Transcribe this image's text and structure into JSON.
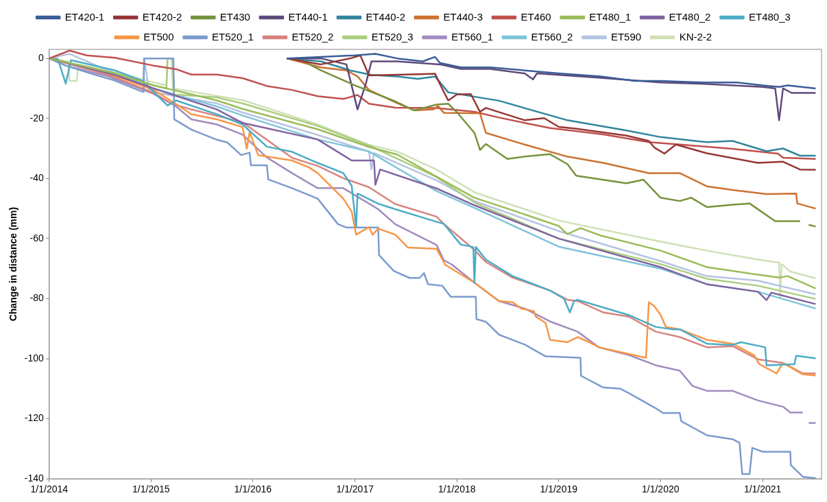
{
  "chart_data": {
    "type": "line",
    "ylabel": "Change in distance (mm)",
    "xlim": [
      "2014-01-01",
      "2021-07-31"
    ],
    "xticks": [
      {
        "value": "2014-01-01",
        "label": "1/1/2014"
      },
      {
        "value": "2015-01-01",
        "label": "1/1/2015"
      },
      {
        "value": "2016-01-01",
        "label": "1/1/2016"
      },
      {
        "value": "2017-01-01",
        "label": "1/1/2017"
      },
      {
        "value": "2018-01-01",
        "label": "1/1/2018"
      },
      {
        "value": "2019-01-01",
        "label": "1/1/2019"
      },
      {
        "value": "2020-01-01",
        "label": "1/1/2020"
      },
      {
        "value": "2021-01-01",
        "label": "1/1/2021"
      }
    ],
    "ylim": [
      -140,
      3
    ],
    "yticks": [
      0,
      -20,
      -40,
      -60,
      -80,
      -100,
      -120,
      -140
    ],
    "grid": false,
    "legend": "top",
    "series": [
      {
        "name": "ET420-1",
        "color": "#3b5d97",
        "x": [
          "2016-05-01",
          "2016-09-01",
          "2017-01-01",
          "2017-03-15",
          "2017-06-01",
          "2017-09-01",
          "2017-10-15",
          "2017-11-01",
          "2018-01-15",
          "2018-05-01",
          "2018-09-01",
          "2019-01-01",
          "2019-06-01",
          "2019-10-01",
          "2020-01-01",
          "2020-06-01",
          "2020-10-01",
          "2021-01-01",
          "2021-03-01",
          "2021-04-01",
          "2021-07-10"
        ],
        "values": [
          0,
          0.5,
          1,
          1.5,
          0,
          -1,
          0.5,
          -1.5,
          -3,
          -3,
          -4,
          -5,
          -6,
          -7.5,
          -7.5,
          -8,
          -8,
          -9,
          -9.5,
          -9,
          -10
        ]
      },
      {
        "name": "ET420-2",
        "color": "#953735",
        "x": [
          "2016-05-01",
          "2016-09-01",
          "2016-12-15",
          "2017-01-20",
          "2017-02-20",
          "2017-08-15",
          "2017-10-15",
          "2017-11-01",
          "2017-12-01",
          "2018-01-01",
          "2018-02-20",
          "2018-03-25",
          "2018-04-15",
          "2018-09-01",
          "2018-11-10",
          "2019-01-01",
          "2019-03-01",
          "2019-09-01",
          "2019-11-20",
          "2019-12-10",
          "2020-01-15",
          "2020-02-25",
          "2020-06-15",
          "2020-12-15",
          "2021-03-15",
          "2021-05-15",
          "2021-07-10"
        ],
        "values": [
          0,
          -2,
          0,
          1,
          -5.7,
          -5.3,
          -5.1,
          -8.5,
          -14,
          -12,
          -11.9,
          -17.8,
          -16.5,
          -20.6,
          -19.9,
          -22.8,
          -23.4,
          -25.7,
          -27.5,
          -29.7,
          -31.7,
          -28.7,
          -31.6,
          -34.8,
          -34.4,
          -37,
          -37.1
        ]
      },
      {
        "name": "ET430",
        "color": "#76923c",
        "x": [
          "2016-05-01",
          "2016-07-01",
          "2016-09-01",
          "2017-01-01",
          "2017-05-25",
          "2017-08-01",
          "2017-10-20",
          "2017-12-01",
          "2018-01-01",
          "2018-03-05",
          "2018-03-25",
          "2018-04-15",
          "2018-07-01",
          "2018-09-01",
          "2018-12-01",
          "2019-02-01",
          "2019-03-05",
          "2019-09-01",
          "2019-11-01",
          "2020-01-01",
          "2020-03-10",
          "2020-04-20",
          "2020-06-15",
          "2020-09-15",
          "2020-11-15",
          "2021-02-15",
          "2021-05-15",
          "2021-05-25",
          "2021-06-15",
          "2021-07-10"
        ],
        "values": [
          0,
          -1,
          -4,
          -9,
          -14.3,
          -17.3,
          -15.4,
          -15.1,
          -17.9,
          -24.8,
          -30.5,
          -28.5,
          -33.5,
          -32.7,
          -31.9,
          -35.2,
          -39.1,
          -41.6,
          -40.4,
          -46.4,
          -47.5,
          -46.4,
          -49.5,
          -48.7,
          -48.3,
          -54.2,
          -54.2,
          null,
          -55.4,
          -56
        ]
      },
      {
        "name": "ET440-1",
        "color": "#5f497a",
        "x": [
          "2016-05-01",
          "2016-09-01",
          "2016-12-01",
          "2017-01-10",
          "2017-02-10",
          "2017-03-01",
          "2017-06-01",
          "2017-11-01",
          "2018-01-15",
          "2018-05-01",
          "2018-09-01",
          "2018-10-01",
          "2018-10-15",
          "2019-06-01",
          "2020-01-01",
          "2020-06-01",
          "2021-01-01",
          "2021-02-15",
          "2021-03-01",
          "2021-03-15",
          "2021-04-15",
          "2021-07-10"
        ],
        "values": [
          0,
          0,
          -2,
          -17,
          -8,
          -1,
          -1,
          -2,
          -3.5,
          -3.5,
          -5,
          -7,
          -5,
          -6.5,
          -8,
          -8.5,
          -9.5,
          -10,
          -20.6,
          -10,
          -11.5,
          -11.5
        ]
      },
      {
        "name": "ET440-2",
        "color": "#31859c",
        "x": [
          "2016-05-01",
          "2016-09-01",
          "2016-12-15",
          "2017-03-01",
          "2017-06-01",
          "2017-08-15",
          "2017-10-15",
          "2017-12-01",
          "2018-06-01",
          "2019-02-01",
          "2019-09-01",
          "2020-01-01",
          "2020-06-15",
          "2020-09-15",
          "2021-01-15",
          "2021-03-15",
          "2021-05-15",
          "2021-07-10"
        ],
        "values": [
          0,
          -1,
          -4,
          -5.5,
          -6,
          -6.8,
          -6,
          -11.3,
          -14.1,
          -20.6,
          -24,
          -26.2,
          -27.9,
          -27.5,
          -30.9,
          -30,
          -32.4,
          -32.4
        ]
      },
      {
        "name": "ET440-3",
        "color": "#cd7130",
        "x": [
          "2016-05-01",
          "2016-09-01",
          "2016-12-01",
          "2017-01-10",
          "2017-02-20",
          "2017-05-25",
          "2017-08-01",
          "2017-10-10",
          "2017-10-25",
          "2017-11-15",
          "2018-03-25",
          "2018-04-15",
          "2018-09-01",
          "2019-02-01",
          "2019-06-10",
          "2019-11-20",
          "2020-03-10",
          "2020-06-15",
          "2020-09-15",
          "2021-01-15",
          "2021-05-01",
          "2021-05-05",
          "2021-07-10"
        ],
        "values": [
          0,
          -3,
          -4,
          -6,
          -10.5,
          -14.6,
          -17.3,
          -17,
          -15.8,
          -18.1,
          -18.3,
          -24.8,
          -28.7,
          -32.7,
          -34.8,
          -38.2,
          -38.2,
          -42.6,
          -43.8,
          -45.2,
          -45,
          -48.3,
          -50
        ]
      },
      {
        "name": "ET460",
        "color": "#c0504d",
        "x": [
          "2014-01-01",
          "2014-03-15",
          "2014-05-15",
          "2014-08-25",
          "2015-01-10",
          "2015-04-01",
          "2015-05-25",
          "2015-08-25",
          "2015-11-25",
          "2016-02-20",
          "2016-05-20",
          "2016-08-20",
          "2016-11-20",
          "2017-01-10",
          "2017-02-20",
          "2017-05-25",
          "2017-10-20",
          "2018-03-05",
          "2018-06-01",
          "2018-09-01",
          "2018-12-01",
          "2019-06-10",
          "2019-11-20",
          "2020-03-10",
          "2020-09-15",
          "2021-02-25",
          "2021-03-15",
          "2021-07-10"
        ],
        "values": [
          0,
          2.6,
          1,
          0.2,
          -2.4,
          -3.6,
          -5.4,
          -5.4,
          -6.6,
          -9.2,
          -10.5,
          -12.6,
          -13.5,
          -12.2,
          -15.1,
          -16.4,
          -16.5,
          -17.8,
          -19.7,
          -21.5,
          -23.2,
          -25.3,
          -27.9,
          -28.7,
          -30.1,
          -31.7,
          -33.1,
          -33.5
        ]
      },
      {
        "name": "ET480_1",
        "color": "#9bbb59",
        "x": [
          "2014-01-01",
          "2014-08-25",
          "2015-01-10",
          "2015-03-20",
          "2015-08-25",
          "2015-11-25",
          "2016-08-20",
          "2017-02-20",
          "2017-06-01",
          "2017-10-20",
          "2018-03-05",
          "2018-07-01",
          "2019-01-01",
          "2019-02-01",
          "2019-03-20",
          "2019-06-01",
          "2020-01-01",
          "2020-06-15",
          "2020-12-15",
          "2021-03-01",
          "2021-04-01",
          "2021-07-10"
        ],
        "values": [
          0,
          -5,
          -9,
          -10.5,
          -14,
          -16.8,
          -23.6,
          -29.5,
          -32,
          -39.4,
          -46.4,
          -50,
          -55.8,
          -58.5,
          -56.5,
          -59,
          -64,
          -69.5,
          -72,
          -73,
          -72.5,
          -76.6
        ]
      },
      {
        "name": "ET480_2",
        "color": "#8064a2",
        "x": [
          "2014-01-01",
          "2014-08-25",
          "2015-01-10",
          "2015-08-25",
          "2015-11-25",
          "2016-08-20",
          "2016-12-20",
          "2017-03-10",
          "2017-03-15",
          "2017-04-01",
          "2017-10-20",
          "2018-03-05",
          "2019-01-01",
          "2020-01-01",
          "2020-06-15",
          "2020-12-15",
          "2021-01-15",
          "2021-02-01",
          "2021-07-10"
        ],
        "values": [
          0,
          -5.5,
          -10,
          -17,
          -21.5,
          -27,
          -34,
          -34,
          -42.1,
          -37,
          -43.3,
          -48.9,
          -60,
          -69.5,
          -75.2,
          -77.7,
          -80.5,
          -78,
          -81.8
        ]
      },
      {
        "name": "ET480_3",
        "color": "#4bacc6",
        "x": [
          "2014-01-01",
          "2014-02-01",
          "2014-03-01",
          "2014-03-20",
          "2014-08-25",
          "2014-12-01",
          "2015-03-01",
          "2015-04-01",
          "2015-08-25",
          "2015-11-25",
          "2016-02-20",
          "2016-05-20",
          "2016-08-20",
          "2016-11-20",
          "2016-12-20",
          "2017-01-05",
          "2017-01-10",
          "2017-03-28",
          "2017-05-25",
          "2017-10-20",
          "2017-11-15",
          "2018-01-15",
          "2018-03-01",
          "2018-03-05",
          "2018-03-10",
          "2018-04-15",
          "2018-07-20",
          "2018-12-01",
          "2019-01-20",
          "2019-02-10",
          "2019-02-25",
          "2019-03-10",
          "2019-09-10",
          "2019-12-15",
          "2020-02-10",
          "2020-03-10",
          "2020-06-15",
          "2020-09-15",
          "2020-10-15",
          "2021-01-10",
          "2021-01-15",
          "2021-04-25",
          "2021-05-01",
          "2021-07-10"
        ],
        "values": [
          0,
          -0.2,
          -8.4,
          -0.6,
          -4,
          -7.5,
          -15.7,
          -14,
          -18.6,
          -22,
          -29.4,
          -31.1,
          -34.8,
          -38.2,
          -42.4,
          -56.2,
          -45,
          -48.5,
          -50.2,
          -54.4,
          -55.1,
          -62,
          -62.8,
          -74.7,
          -62.8,
          -67,
          -72.5,
          -77.3,
          -80,
          -84.6,
          -80.8,
          -80.4,
          -85.5,
          -89.4,
          -90.2,
          -90.2,
          -95,
          -95.4,
          -94.5,
          -96.2,
          -102.2,
          -101.8,
          -99,
          -99.9
        ]
      },
      {
        "name": "ET500",
        "color": "#f79646",
        "x": [
          "2014-01-01",
          "2014-08-01",
          "2015-01-10",
          "2015-04-01",
          "2015-05-25",
          "2015-08-25",
          "2015-11-25",
          "2015-12-10",
          "2015-12-20",
          "2016-01-20",
          "2016-05-20",
          "2016-07-20",
          "2016-08-20",
          "2016-11-20",
          "2016-12-20",
          "2017-01-05",
          "2017-02-20",
          "2017-03-05",
          "2017-03-25",
          "2017-05-25",
          "2017-07-10",
          "2017-10-20",
          "2017-11-20",
          "2018-03-05",
          "2018-06-01",
          "2018-07-20",
          "2018-08-20",
          "2018-10-05",
          "2018-10-10",
          "2018-11-15",
          "2018-12-01",
          "2019-02-01",
          "2019-03-10",
          "2019-04-20",
          "2019-05-25",
          "2019-11-10",
          "2019-11-20",
          "2019-12-10",
          "2020-01-01",
          "2020-01-20",
          "2020-03-10",
          "2020-06-15",
          "2020-09-15",
          "2020-12-01",
          "2020-12-20",
          "2021-02-20",
          "2021-03-15",
          "2021-05-25",
          "2021-07-10"
        ],
        "values": [
          0,
          -5,
          -10.5,
          -15.2,
          -18.6,
          -20.3,
          -22.9,
          -30.1,
          -24.6,
          -32.2,
          -34,
          -36.3,
          -38.2,
          -46.7,
          -51,
          -58.7,
          -56.2,
          -58.7,
          -56.7,
          -58.7,
          -63,
          -63.4,
          -68.7,
          -74.7,
          -80.8,
          -81.2,
          -83.3,
          -84.2,
          -85.9,
          -88.1,
          -93.7,
          -94.5,
          -92.8,
          -94.5,
          -96.2,
          -99.7,
          -81.2,
          -82.5,
          -85.4,
          -89.4,
          -90.2,
          -93.7,
          -95,
          -98.8,
          -101.8,
          -104.9,
          -101.4,
          -105.2,
          -105.6
        ]
      },
      {
        "name": "ET520_1",
        "color": "#7b9bcd",
        "x": [
          "2014-01-01",
          "2014-03-01",
          "2014-05-25",
          "2014-08-25",
          "2014-11-25",
          "2014-12-05",
          "2014-12-07",
          "2015-03-22",
          "2015-03-25",
          "2015-05-25",
          "2015-08-25",
          "2015-10-01",
          "2015-11-20",
          "2015-12-20",
          "2015-12-25",
          "2016-02-20",
          "2016-02-25",
          "2016-05-20",
          "2016-08-20",
          "2016-11-01",
          "2016-12-01",
          "2017-03-25",
          "2017-03-28",
          "2017-05-20",
          "2017-07-15",
          "2017-08-20",
          "2017-09-05",
          "2017-09-20",
          "2017-11-10",
          "2017-12-10",
          "2018-03-10",
          "2018-03-12",
          "2018-04-15",
          "2018-06-01",
          "2018-09-01",
          "2018-11-15",
          "2019-03-20",
          "2019-03-22",
          "2019-06-10",
          "2019-08-10",
          "2019-09-10",
          "2019-12-15",
          "2020-01-10",
          "2020-03-10",
          "2020-03-15",
          "2020-06-15",
          "2020-09-15",
          "2020-10-10",
          "2020-10-20",
          "2020-11-15",
          "2020-11-25",
          "2021-01-01",
          "2021-04-10",
          "2021-04-12",
          "2021-05-25",
          "2021-07-10"
        ],
        "values": [
          0,
          -2.4,
          -4.9,
          -7.4,
          -10.9,
          -11.2,
          0,
          0,
          -20.3,
          -23.7,
          -27.1,
          -28,
          -32.2,
          -31.4,
          -35.6,
          -35.6,
          -40.3,
          -43.2,
          -46.7,
          -55.2,
          -56.3,
          -56.3,
          -65.5,
          -70.8,
          -73.1,
          -73.1,
          -71.5,
          -75.2,
          -75.7,
          -79.4,
          -79.4,
          -86.8,
          -87.7,
          -92,
          -95.3,
          -99.2,
          -99.7,
          -105.7,
          -109.6,
          -110,
          -111.5,
          -116.5,
          -118.1,
          -118.1,
          -120.8,
          -125.5,
          -126.8,
          -128,
          -138.4,
          -138.4,
          -129.7,
          -131,
          -131,
          -135.4,
          -139.3,
          -139.8
        ]
      },
      {
        "name": "ET520_2",
        "color": "#d6837f",
        "x": [
          "2014-01-01",
          "2014-08-01",
          "2015-01-10",
          "2015-03-15",
          "2015-05-25",
          "2015-11-25",
          "2016-05-20",
          "2016-08-20",
          "2016-11-20",
          "2017-02-20",
          "2017-05-25",
          "2017-10-20",
          "2017-11-15",
          "2018-03-05",
          "2018-04-15",
          "2018-07-20",
          "2018-12-01",
          "2019-02-01",
          "2019-03-10",
          "2019-06-10",
          "2019-09-10",
          "2019-12-15",
          "2020-03-10",
          "2020-06-15",
          "2020-09-15",
          "2020-12-15",
          "2021-03-15",
          "2021-05-25",
          "2021-07-10"
        ],
        "values": [
          0,
          -5.5,
          -11.5,
          -15,
          -17,
          -21.3,
          -33.1,
          -35.8,
          -39.9,
          -42.9,
          -48.5,
          -52.7,
          -55.1,
          -63.8,
          -67.8,
          -73,
          -77.3,
          -80.4,
          -80.8,
          -84.6,
          -86,
          -91,
          -92.8,
          -96.2,
          -95.8,
          -100.2,
          -101.4,
          -104.9,
          -104.9
        ]
      },
      {
        "name": "ET520_3",
        "color": "#abcd7f",
        "x": [
          "2014-01-01",
          "2014-08-25",
          "2015-01-10",
          "2015-02-25",
          "2015-03-01",
          "2015-03-20",
          "2015-03-25",
          "2015-08-25",
          "2015-11-25",
          "2016-08-20",
          "2017-02-20",
          "2017-10-20",
          "2018-03-05",
          "2019-01-01",
          "2020-01-01",
          "2020-06-15",
          "2020-12-15",
          "2021-07-10"
        ],
        "values": [
          0,
          -5,
          -9,
          -10,
          0,
          0,
          -12,
          -13,
          -15,
          -22.5,
          -29,
          -39.5,
          -48,
          -60,
          -68.5,
          -73.4,
          -75.7,
          -80.1
        ]
      },
      {
        "name": "ET560_1",
        "color": "#a08cc0",
        "x": [
          "2014-01-01",
          "2014-03-01",
          "2014-08-01",
          "2015-01-10",
          "2015-04-01",
          "2015-05-25",
          "2015-08-25",
          "2015-11-25",
          "2016-02-20",
          "2016-05-20",
          "2016-08-20",
          "2016-11-20",
          "2017-03-25",
          "2017-05-25",
          "2017-10-20",
          "2017-11-15",
          "2017-12-15",
          "2018-03-05",
          "2018-06-01",
          "2018-09-01",
          "2018-12-01",
          "2019-03-10",
          "2019-05-25",
          "2019-09-10",
          "2019-12-15",
          "2020-03-10",
          "2020-04-25",
          "2020-06-15",
          "2020-09-15",
          "2020-12-15",
          "2021-03-15",
          "2021-04-10",
          "2021-05-25",
          "2021-06-01",
          "2021-06-15",
          "2021-07-10"
        ],
        "values": [
          0,
          -2.4,
          -6,
          -11.8,
          -16,
          -20.3,
          -22,
          -25.4,
          -33,
          -38.2,
          -43.2,
          -43.2,
          -50.2,
          -55.2,
          -62.1,
          -67.2,
          -68.7,
          -74.7,
          -80.8,
          -83.3,
          -87.6,
          -91,
          -96.2,
          -98.8,
          -102.2,
          -104,
          -109.1,
          -110.7,
          -110.7,
          -113.9,
          -116,
          -117.9,
          -117.9,
          null,
          -121.4,
          -121.4
        ]
      },
      {
        "name": "ET560_2",
        "color": "#7fc4d9",
        "x": [
          "2014-01-01",
          "2014-08-25",
          "2015-01-10",
          "2015-08-25",
          "2015-11-25",
          "2016-08-20",
          "2017-02-20",
          "2017-10-20",
          "2018-03-05",
          "2019-01-01",
          "2020-01-01",
          "2020-06-15",
          "2020-12-15",
          "2021-07-10"
        ],
        "values": [
          0,
          -5,
          -10,
          -16,
          -19,
          -27,
          -31,
          -44.2,
          -49.8,
          -62.7,
          -70,
          -75.2,
          -77.7,
          -83.3
        ]
      },
      {
        "name": "ET590",
        "color": "#b4c4e2",
        "x": [
          "2014-01-01",
          "2014-03-15",
          "2014-08-25",
          "2014-12-05",
          "2014-12-07",
          "2014-12-25",
          "2015-08-25",
          "2015-11-25",
          "2016-08-20",
          "2017-02-20",
          "2017-03-01",
          "2017-03-10",
          "2017-10-20",
          "2018-03-05",
          "2019-01-01",
          "2020-01-01",
          "2020-06-15",
          "2020-12-15",
          "2021-07-10"
        ],
        "values": [
          0,
          1.5,
          -5,
          -9,
          0,
          -11,
          -15,
          -18,
          -25.5,
          -31,
          -37,
          -31.5,
          -40.6,
          -47.5,
          -57.5,
          -67.5,
          -72.5,
          -74,
          -78.6
        ]
      },
      {
        "name": "KN-2-2",
        "color": "#cfe0b6",
        "x": [
          "2014-01-01",
          "2014-03-10",
          "2014-03-15",
          "2014-04-10",
          "2014-04-15",
          "2014-08-25",
          "2015-01-10",
          "2015-02-25",
          "2015-03-01",
          "2015-03-15",
          "2015-03-20",
          "2015-08-25",
          "2015-11-25",
          "2016-02-20",
          "2016-08-20",
          "2017-02-20",
          "2017-06-01",
          "2017-10-20",
          "2018-03-05",
          "2019-01-01",
          "2020-01-01",
          "2020-06-15",
          "2020-12-15",
          "2021-03-01",
          "2021-03-05",
          "2021-03-10",
          "2021-04-10",
          "2021-07-10"
        ],
        "values": [
          0,
          -1,
          -7.5,
          -7.5,
          -2,
          -4.5,
          -8,
          -9,
          0,
          0,
          -10,
          -12.5,
          -13.9,
          -16.5,
          -22,
          -28.8,
          -31,
          -37,
          -44.6,
          -54,
          -61,
          -64,
          -67,
          -68,
          -79.4,
          -68.5,
          -71,
          -73.2
        ]
      }
    ]
  }
}
